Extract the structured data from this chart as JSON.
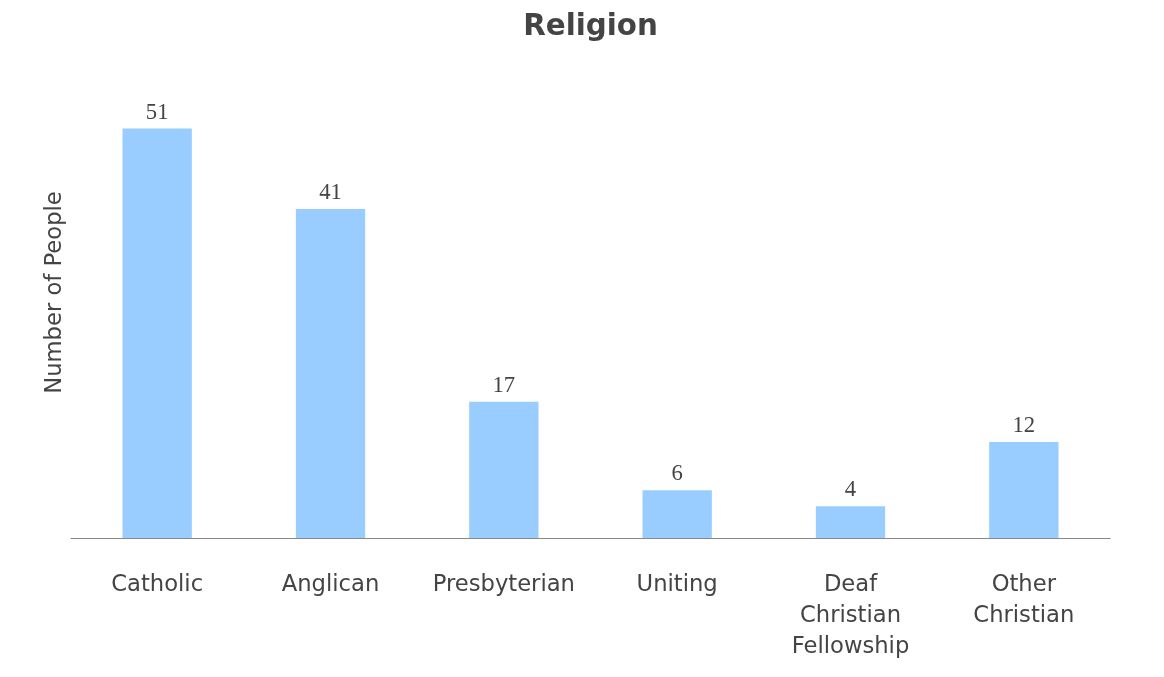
{
  "chart_data": {
    "type": "bar",
    "title": "Religion",
    "ylabel": "Number of People",
    "categories": [
      "Catholic",
      "Anglican",
      "Presbyterian",
      "Uniting",
      "Deaf Christian Fellowship",
      "Other Christian"
    ],
    "values": [
      51,
      41,
      17,
      6,
      4,
      12
    ],
    "color": "#99ccff",
    "data_labels": true,
    "grid": false
  }
}
